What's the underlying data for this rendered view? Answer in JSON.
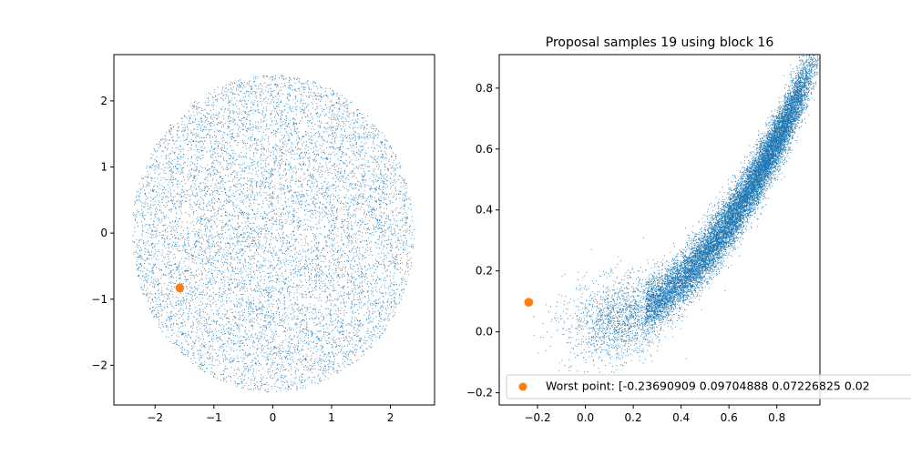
{
  "chart_data": [
    {
      "type": "scatter",
      "title": "",
      "xlabel": "",
      "ylabel": "",
      "xlim": [
        -2.7,
        2.75
      ],
      "ylim": [
        -2.6,
        2.7
      ],
      "xticks": [
        -2,
        -1,
        0,
        1,
        2
      ],
      "yticks": [
        -2,
        -1,
        0,
        1,
        2
      ],
      "grid": false,
      "series": [
        {
          "description": "dense cloud of small blue points filling a disc of radius ~2.4 centred at (0,0)",
          "color": "#1f77b4",
          "distribution": {
            "shape": "disc",
            "center": [
              0,
              0
            ],
            "radius": 2.4,
            "count": 9000
          }
        },
        {
          "color": "#ff7f0e",
          "points": [
            [
              -1.58,
              -0.83
            ]
          ]
        }
      ]
    },
    {
      "type": "scatter",
      "title": "Proposal samples 19 using block 16",
      "xlabel": "",
      "ylabel": "",
      "xlim": [
        -0.36,
        0.98
      ],
      "ylim": [
        -0.24,
        0.91
      ],
      "xticks": [
        -0.2,
        0.0,
        0.2,
        0.4,
        0.6,
        0.8
      ],
      "yticks": [
        -0.2,
        0.0,
        0.2,
        0.4,
        0.6,
        0.8
      ],
      "grid": false,
      "series": [
        {
          "description": "dense blue point cloud along a parabola-like banana curve, sparse near the bottom-left and very dense toward the upper right",
          "color": "#1f77b4",
          "distribution": {
            "shape": "banana",
            "x_range": [
              -0.1,
              0.9
            ],
            "count": 16000
          }
        },
        {
          "name": "Worst point: [-0.23690909  0.09704888  0.07226825  0.02",
          "color": "#ff7f0e",
          "points": [
            [
              -0.2369,
              0.097
            ]
          ]
        }
      ],
      "legend": {
        "placement": "lower-left",
        "entries": [
          "Worst point: [-0.23690909  0.09704888  0.07226825  0.02"
        ]
      }
    }
  ]
}
